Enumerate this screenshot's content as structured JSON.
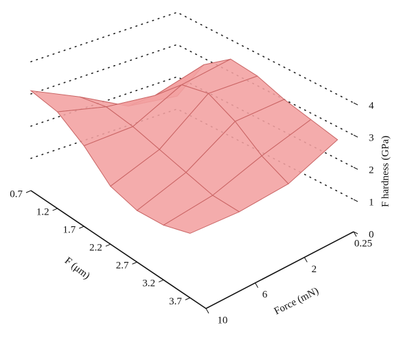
{
  "chart_data": {
    "type": "surface",
    "xlabel": "F (μm)",
    "x": [
      0.7,
      1.2,
      1.7,
      2.2,
      2.7,
      3.2,
      3.7
    ],
    "xlim": [
      0.7,
      4.0
    ],
    "xticks": [
      0.7,
      1.2,
      1.7,
      2.2,
      2.7,
      3.2,
      3.7
    ],
    "ylabel": "Force (mN)",
    "categories": [
      "10",
      "6",
      "2",
      "0.25"
    ],
    "zlabel": "F hardness (GPa)",
    "zlim": [
      0,
      4
    ],
    "zticks": [
      0,
      1,
      2,
      3,
      4
    ],
    "z": [
      [
        3.1,
        2.4,
        1.6,
        1.4
      ],
      [
        3.0,
        2.6,
        2.4,
        2.8
      ],
      [
        2.5,
        2.5,
        3.2,
        3.4
      ],
      [
        1.8,
        2.3,
        3.4,
        3.3
      ],
      [
        1.6,
        2.1,
        3.0,
        3.0
      ],
      [
        1.7,
        1.9,
        2.4,
        2.8
      ],
      [
        2.0,
        1.9,
        2.0,
        2.6
      ]
    ],
    "color": "#f2a0a0",
    "edge_color": "#c96464",
    "grid": true
  }
}
